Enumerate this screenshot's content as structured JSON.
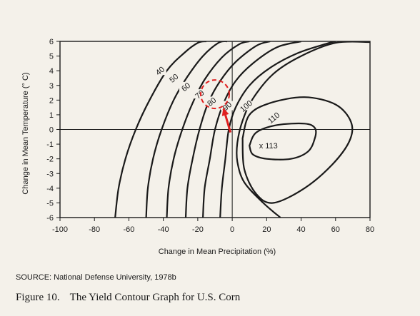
{
  "chart_data": {
    "type": "contour",
    "xlabel": "Change in Mean Precipitation (%)",
    "ylabel": "Change in Mean Temperature (° C)",
    "xlim": [
      -100,
      80
    ],
    "ylim": [
      -6,
      6
    ],
    "x_ticks": [
      -100,
      -80,
      -60,
      -40,
      -20,
      0,
      20,
      40,
      60,
      80
    ],
    "y_ticks": [
      6,
      5,
      4,
      3,
      2,
      1,
      0,
      -1,
      -2,
      -3,
      -4,
      -5,
      -6
    ],
    "reference_lines": {
      "x": 0,
      "y": 0
    },
    "contours": [
      {
        "level": "40",
        "points": [
          [
            -68,
            -6
          ],
          [
            -66,
            -4
          ],
          [
            -62,
            -2
          ],
          [
            -56,
            0
          ],
          [
            -48,
            2
          ],
          [
            -38,
            4
          ],
          [
            -28,
            5.2
          ],
          [
            -20,
            5.9
          ],
          [
            -15,
            6
          ]
        ],
        "label_at": [
          -42,
          4.0
        ]
      },
      {
        "level": "50",
        "points": [
          [
            -50,
            -6
          ],
          [
            -49,
            -4
          ],
          [
            -46,
            -2
          ],
          [
            -41,
            0
          ],
          [
            -34,
            2
          ],
          [
            -26,
            3.6
          ],
          [
            -17,
            5
          ],
          [
            -8,
            5.9
          ],
          [
            -3,
            6
          ]
        ],
        "label_at": [
          -34,
          3.5
        ]
      },
      {
        "level": "60",
        "points": [
          [
            -38,
            -6
          ],
          [
            -37,
            -4
          ],
          [
            -34,
            -2
          ],
          [
            -29,
            0
          ],
          [
            -23,
            1.8
          ],
          [
            -16,
            3.4
          ],
          [
            -6,
            4.9
          ],
          [
            4,
            5.8
          ],
          [
            10,
            6
          ]
        ],
        "label_at": [
          -27,
          2.9
        ]
      },
      {
        "level": "70",
        "points": [
          [
            -27,
            -6
          ],
          [
            -26,
            -4
          ],
          [
            -23,
            -2
          ],
          [
            -19,
            0
          ],
          [
            -14,
            1.8
          ],
          [
            -7,
            3.3
          ],
          [
            2,
            4.6
          ],
          [
            14,
            5.7
          ],
          [
            22,
            6
          ]
        ],
        "label_at": [
          -19,
          2.4
        ]
      },
      {
        "level": "80",
        "points": [
          [
            -17,
            -6
          ],
          [
            -16,
            -4
          ],
          [
            -13,
            -2
          ],
          [
            -10,
            0
          ],
          [
            -5,
            1.8
          ],
          [
            2,
            3.3
          ],
          [
            12,
            4.5
          ],
          [
            26,
            5.6
          ],
          [
            40,
            6
          ]
        ],
        "label_at": [
          -12,
          1.9
        ]
      },
      {
        "level": "90",
        "points": [
          [
            -7,
            -6
          ],
          [
            -6,
            -4
          ],
          [
            -4,
            -2
          ],
          [
            -2,
            0
          ],
          [
            2,
            1.5
          ],
          [
            10,
            3
          ],
          [
            22,
            4.2
          ],
          [
            38,
            5.2
          ],
          [
            55,
            5.85
          ],
          [
            60,
            6
          ]
        ],
        "label_at": [
          -3,
          1.6
        ]
      },
      {
        "level": "100",
        "points": [
          [
            80,
            5.95
          ],
          [
            60,
            5.9
          ],
          [
            40,
            5
          ],
          [
            24,
            3.8
          ],
          [
            12,
            2.1
          ],
          [
            6,
            0.6
          ],
          [
            3,
            -0.9
          ],
          [
            3,
            -2.2
          ],
          [
            7,
            -3.6
          ],
          [
            18,
            -5
          ],
          [
            28,
            -6
          ]
        ],
        "label_at": [
          8,
          1.6
        ]
      },
      {
        "level": "110",
        "points": [
          [
            6,
            -0.6
          ],
          [
            10,
            1
          ],
          [
            22,
            1.8
          ],
          [
            42,
            2.2
          ],
          [
            60,
            1.7
          ],
          [
            69,
            0.5
          ],
          [
            68,
            -0.8
          ],
          [
            58,
            -2.4
          ],
          [
            42,
            -4
          ],
          [
            24,
            -5
          ],
          [
            14,
            -4.4
          ],
          [
            7,
            -2.7
          ],
          [
            6,
            -0.6
          ]
        ],
        "label_at": [
          24,
          0.8
        ],
        "closed": true
      },
      {
        "level": "",
        "points": [
          [
            10,
            -1.1
          ],
          [
            14,
            -0.2
          ],
          [
            26,
            0.3
          ],
          [
            42,
            0.4
          ],
          [
            48,
            0.1
          ],
          [
            48,
            -0.6
          ],
          [
            44,
            -1.5
          ],
          [
            34,
            -2
          ],
          [
            20,
            -2
          ],
          [
            12,
            -1.7
          ],
          [
            10,
            -1.1
          ]
        ],
        "closed": true
      }
    ],
    "peak": {
      "x": 21,
      "y": -1.1,
      "label": "x 113"
    },
    "highlight": {
      "x": -10,
      "y": 2.4,
      "color": "#e02020"
    },
    "arrow": {
      "from": [
        -1,
        -0.2
      ],
      "to": [
        -5,
        1.4
      ],
      "color": "#e02020"
    }
  },
  "source": "SOURCE: National Defense University, 1978b",
  "caption": {
    "number": "Figure 10.",
    "text": "The Yield Contour Graph for U.S. Corn"
  }
}
